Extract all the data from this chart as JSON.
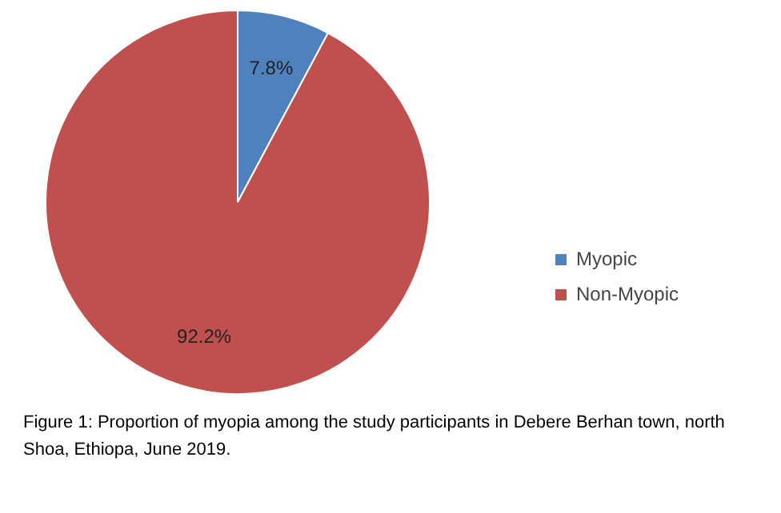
{
  "chart_data": {
    "type": "pie",
    "categories": [
      "Myopic",
      "Non-Myopic"
    ],
    "values": [
      7.8,
      92.2
    ],
    "colors": [
      "#4f81bd",
      "#c0504d"
    ],
    "value_labels": [
      "7.8%",
      "92.2%"
    ],
    "legend": "right",
    "annotations": [
      "Figure 1: Proportion of myopia among the study participants in Debere Berhan town, north Shoa, Ethiopa, June 2019."
    ]
  }
}
